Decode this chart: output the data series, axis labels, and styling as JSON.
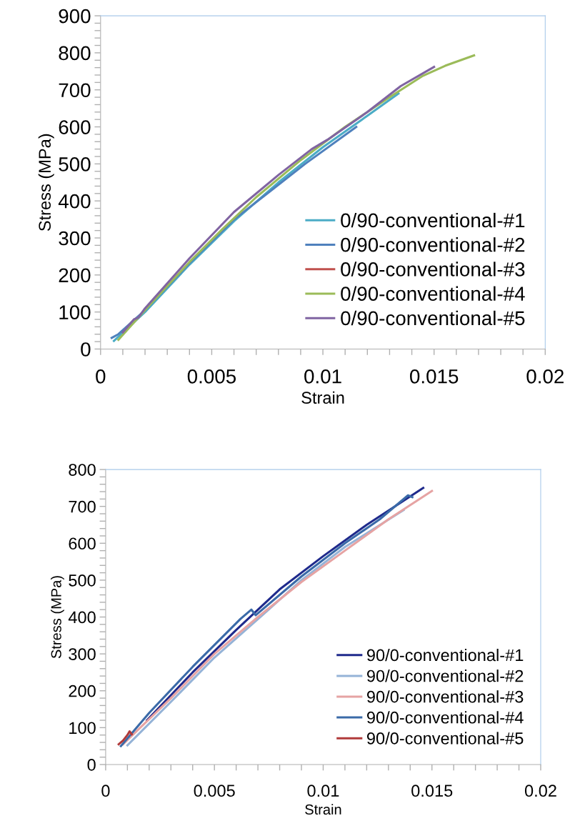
{
  "chart_data": [
    {
      "type": "line",
      "xlabel": "Strain",
      "ylabel": "Stress (MPa)",
      "xlim": [
        0,
        0.02
      ],
      "ylim": [
        0,
        900
      ],
      "xticks": [
        0,
        {
          "value": 0.001,
          "label": null
        },
        {
          "value": 0.002,
          "label": null
        },
        {
          "value": 0.003,
          "label": null
        },
        {
          "value": 0.004,
          "label": null
        },
        0.005,
        {
          "value": 0.006,
          "label": null
        },
        {
          "value": 0.007,
          "label": null
        },
        {
          "value": 0.008,
          "label": null
        },
        {
          "value": 0.009,
          "label": null
        },
        0.01,
        {
          "value": 0.011,
          "label": null
        },
        {
          "value": 0.012,
          "label": null
        },
        {
          "value": 0.013,
          "label": null
        },
        {
          "value": 0.014,
          "label": null
        },
        0.015,
        {
          "value": 0.016,
          "label": null
        },
        {
          "value": 0.017,
          "label": null
        },
        {
          "value": 0.018,
          "label": null
        },
        {
          "value": 0.019,
          "label": null
        },
        0.02
      ],
      "yticks": [
        0,
        {
          "value": 20,
          "label": null
        },
        {
          "value": 40,
          "label": null
        },
        {
          "value": 60,
          "label": null
        },
        {
          "value": 80,
          "label": null
        },
        100,
        {
          "value": 120,
          "label": null
        },
        {
          "value": 140,
          "label": null
        },
        {
          "value": 160,
          "label": null
        },
        {
          "value": 180,
          "label": null
        },
        200,
        {
          "value": 220,
          "label": null
        },
        {
          "value": 240,
          "label": null
        },
        {
          "value": 260,
          "label": null
        },
        {
          "value": 280,
          "label": null
        },
        300,
        {
          "value": 320,
          "label": null
        },
        {
          "value": 340,
          "label": null
        },
        {
          "value": 360,
          "label": null
        },
        {
          "value": 380,
          "label": null
        },
        400,
        {
          "value": 420,
          "label": null
        },
        {
          "value": 440,
          "label": null
        },
        {
          "value": 460,
          "label": null
        },
        {
          "value": 480,
          "label": null
        },
        500,
        {
          "value": 520,
          "label": null
        },
        {
          "value": 540,
          "label": null
        },
        {
          "value": 560,
          "label": null
        },
        {
          "value": 580,
          "label": null
        },
        600,
        {
          "value": 620,
          "label": null
        },
        {
          "value": 640,
          "label": null
        },
        {
          "value": 660,
          "label": null
        },
        {
          "value": 680,
          "label": null
        },
        700,
        {
          "value": 720,
          "label": null
        },
        {
          "value": 740,
          "label": null
        },
        {
          "value": 760,
          "label": null
        },
        {
          "value": 780,
          "label": null
        },
        800,
        {
          "value": 820,
          "label": null
        },
        {
          "value": 840,
          "label": null
        },
        {
          "value": 860,
          "label": null
        },
        {
          "value": 880,
          "label": null
        },
        900
      ],
      "grid": false,
      "legend": "bottom right",
      "marker": "none",
      "line_style": "solid",
      "series": [
        {
          "name": "0/90-conventional-#1",
          "color": "#4bacc6",
          "x": [
            0.0006,
            0.002,
            0.004,
            0.006,
            0.008,
            0.01,
            0.012,
            0.0134
          ],
          "values": [
            22,
            100,
            228,
            345,
            450,
            545,
            630,
            690
          ]
        },
        {
          "name": "0/90-conventional-#2",
          "color": "#4f81bd",
          "x": [
            0.0005,
            0.0008,
            0.002,
            0.004,
            0.006,
            0.0075,
            0.0092,
            0.0115
          ],
          "values": [
            30,
            40,
            105,
            232,
            350,
            420,
            500,
            600
          ]
        },
        {
          "name": "0/90-conventional-#3",
          "color": "#c0504d"
        },
        {
          "name": "0/90-conventional-#4",
          "color": "#9bbb59",
          "x": [
            0.0008,
            0.002,
            0.004,
            0.0055,
            0.007,
            0.009,
            0.011,
            0.013,
            0.0145,
            0.0155,
            0.0168
          ],
          "values": [
            25,
            105,
            235,
            325,
            410,
            510,
            600,
            680,
            738,
            765,
            793
          ]
        },
        {
          "name": "0/90-conventional-#5",
          "color": "#8064a2",
          "x": [
            0.001,
            0.0015,
            0.0017,
            0.002,
            0.004,
            0.006,
            0.008,
            0.0095,
            0.0102,
            0.012,
            0.0135,
            0.015
          ],
          "values": [
            45,
            80,
            85,
            110,
            245,
            370,
            470,
            540,
            565,
            640,
            710,
            762
          ]
        }
      ]
    },
    {
      "type": "line",
      "xlabel": "Strain",
      "ylabel": "Stress (MPa)",
      "xlim": [
        0,
        0.02
      ],
      "ylim": [
        0,
        800
      ],
      "xticks": [
        0,
        {
          "value": 0.001,
          "label": null
        },
        {
          "value": 0.002,
          "label": null
        },
        {
          "value": 0.003,
          "label": null
        },
        {
          "value": 0.004,
          "label": null
        },
        0.005,
        {
          "value": 0.006,
          "label": null
        },
        {
          "value": 0.007,
          "label": null
        },
        {
          "value": 0.008,
          "label": null
        },
        {
          "value": 0.009,
          "label": null
        },
        0.01,
        {
          "value": 0.011,
          "label": null
        },
        {
          "value": 0.012,
          "label": null
        },
        {
          "value": 0.013,
          "label": null
        },
        {
          "value": 0.014,
          "label": null
        },
        0.015,
        {
          "value": 0.016,
          "label": null
        },
        {
          "value": 0.017,
          "label": null
        },
        {
          "value": 0.018,
          "label": null
        },
        {
          "value": 0.019,
          "label": null
        },
        0.02
      ],
      "yticks": [
        0,
        {
          "value": 20,
          "label": null
        },
        {
          "value": 40,
          "label": null
        },
        {
          "value": 60,
          "label": null
        },
        {
          "value": 80,
          "label": null
        },
        100,
        {
          "value": 120,
          "label": null
        },
        {
          "value": 140,
          "label": null
        },
        {
          "value": 160,
          "label": null
        },
        {
          "value": 180,
          "label": null
        },
        200,
        {
          "value": 220,
          "label": null
        },
        {
          "value": 240,
          "label": null
        },
        {
          "value": 260,
          "label": null
        },
        {
          "value": 280,
          "label": null
        },
        300,
        {
          "value": 320,
          "label": null
        },
        {
          "value": 340,
          "label": null
        },
        {
          "value": 360,
          "label": null
        },
        {
          "value": 380,
          "label": null
        },
        400,
        {
          "value": 420,
          "label": null
        },
        {
          "value": 440,
          "label": null
        },
        {
          "value": 460,
          "label": null
        },
        {
          "value": 480,
          "label": null
        },
        500,
        {
          "value": 520,
          "label": null
        },
        {
          "value": 540,
          "label": null
        },
        {
          "value": 560,
          "label": null
        },
        {
          "value": 580,
          "label": null
        },
        600,
        {
          "value": 620,
          "label": null
        },
        {
          "value": 640,
          "label": null
        },
        {
          "value": 660,
          "label": null
        },
        {
          "value": 680,
          "label": null
        },
        700,
        {
          "value": 720,
          "label": null
        },
        {
          "value": 740,
          "label": null
        },
        {
          "value": 760,
          "label": null
        },
        {
          "value": 780,
          "label": null
        },
        800
      ],
      "grid": false,
      "legend": "bottom right",
      "marker": "none",
      "line_style": "solid",
      "series": [
        {
          "name": "90/0-conventional-#1",
          "color": "#1f2a8c",
          "x": [
            0.0019,
            0.004,
            0.006,
            0.008,
            0.01,
            0.012,
            0.0146
          ],
          "values": [
            120,
            250,
            365,
            475,
            565,
            650,
            750
          ]
        },
        {
          "name": "90/0-conventional-#2",
          "color": "#95b3d7",
          "x": [
            0.001,
            0.003,
            0.005,
            0.0073,
            0.009,
            0.011,
            0.0137
          ],
          "values": [
            52,
            170,
            290,
            410,
            500,
            590,
            690
          ]
        },
        {
          "name": "90/0-conventional-#3",
          "color": "#e6a3a3",
          "x": [
            0.0008,
            0.003,
            0.005,
            0.007,
            0.009,
            0.011,
            0.013,
            0.015
          ],
          "values": [
            55,
            180,
            300,
            400,
            495,
            580,
            665,
            742
          ]
        },
        {
          "name": "90/0-conventional-#4",
          "color": "#3a6aa8",
          "x": [
            0.0007,
            0.002,
            0.004,
            0.0062,
            0.0067,
            0.0069,
            0.009,
            0.011,
            0.0126,
            0.0139,
            0.0141
          ],
          "values": [
            50,
            140,
            265,
            395,
            420,
            405,
            510,
            600,
            665,
            730,
            725
          ]
        },
        {
          "name": "90/0-conventional-#5",
          "color": "#b03a3a",
          "x": [
            0.0006,
            0.0008,
            0.001,
            0.0011,
            0.0012
          ],
          "values": [
            55,
            65,
            80,
            90,
            82
          ]
        }
      ]
    }
  ]
}
